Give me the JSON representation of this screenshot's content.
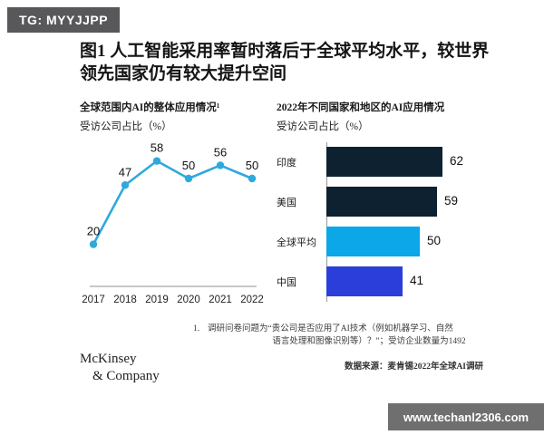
{
  "badge": {
    "text": "TG: MYYJJPP"
  },
  "title": "图1 人工智能采用率暂时落后于全球平均水平，较世界领先国家仍有较大提升空间",
  "footnote": {
    "marker": "1.",
    "line1": "调研问卷问题为“贵公司是否应用了AI技术（例如机器学习、自然",
    "line2": "语言处理和图像识别等）？”；受访企业数量为1492"
  },
  "source": "数据来源：麦肯锡2022年全球AI调研",
  "logo": {
    "line1": "McKinsey",
    "line2": "& Company"
  },
  "watermark": {
    "text": "www.techanl2306.com"
  },
  "colors": {
    "line_series": "#2fa9dc",
    "bar_navy": "#0e2130",
    "bar_cyan": "#0ba7e8",
    "bar_royal_blue": "#2b3ed9",
    "badge_bg": "#58585a",
    "watermark_bg": "#6f6f6f"
  },
  "chart_data": [
    {
      "type": "line",
      "title": "全球范围内AI的整体应用情况¹",
      "ylabel": "受访公司占比（%）",
      "x": [
        "2017",
        "2018",
        "2019",
        "2020",
        "2021",
        "2022"
      ],
      "values": [
        20,
        47,
        58,
        50,
        56,
        50
      ],
      "ylim": [
        0,
        65
      ],
      "grid": false,
      "data_labels": true,
      "line_color": "#2fa9dc",
      "legend": "none"
    },
    {
      "type": "bar",
      "orientation": "horizontal",
      "title": "2022年不同国家和地区的AI应用情况",
      "ylabel": "受访公司占比（%）",
      "categories": [
        "印度",
        "美国",
        "全球平均",
        "中国"
      ],
      "values": [
        62,
        59,
        50,
        41
      ],
      "bar_colors": [
        "#0e2130",
        "#0e2130",
        "#0ba7e8",
        "#2b3ed9"
      ],
      "xlim": [
        0,
        70
      ],
      "grid": false,
      "data_labels": true,
      "legend": "none"
    }
  ]
}
